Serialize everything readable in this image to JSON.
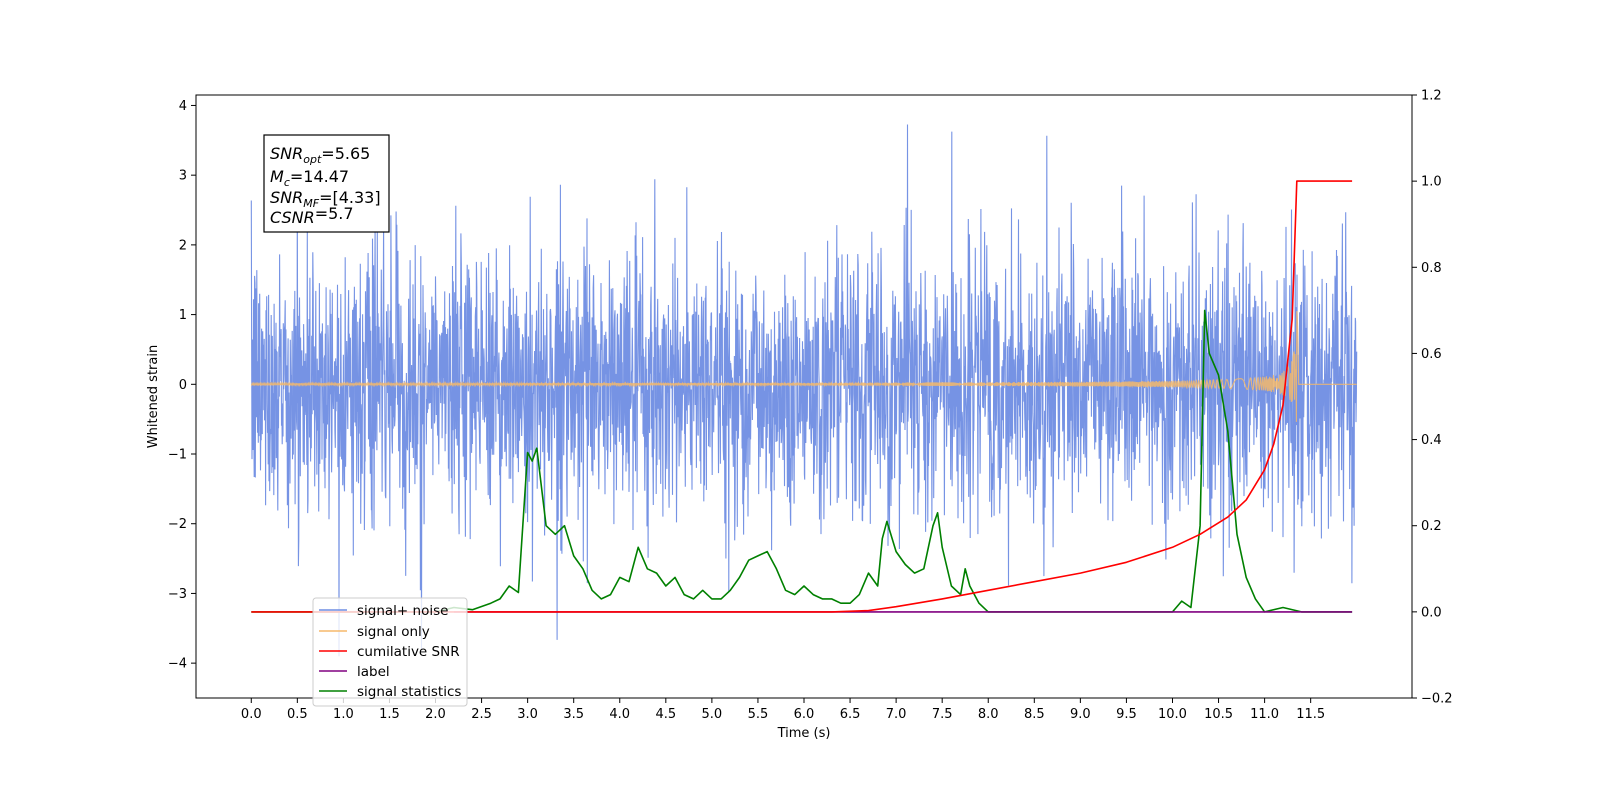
{
  "chart_data": {
    "type": "line",
    "xlabel": "Time (s)",
    "ylabel": "Whitened strain",
    "xlim": [
      -0.6,
      12.6
    ],
    "ylim_left": [
      -4.5,
      4.15
    ],
    "ylim_right": [
      -0.2,
      1.2
    ],
    "x_ticks": [
      0.0,
      0.5,
      1.0,
      1.5,
      2.0,
      2.5,
      3.0,
      3.5,
      4.0,
      4.5,
      5.0,
      5.5,
      6.0,
      6.5,
      7.0,
      7.5,
      8.0,
      8.5,
      9.0,
      9.5,
      10.0,
      10.5,
      11.0,
      11.5
    ],
    "x_tick_labels": [
      "0.0",
      "0.5",
      "1.0",
      "1.5",
      "2.0",
      "2.5",
      "3.0",
      "3.5",
      "4.0",
      "4.5",
      "5.0",
      "5.5",
      "6.0",
      "6.5",
      "7.0",
      "7.5",
      "8.0",
      "8.5",
      "9.0",
      "9.5",
      "10.0",
      "10.5",
      "11.0",
      "11.5"
    ],
    "y_left_ticks": [
      -4,
      -3,
      -2,
      -1,
      0,
      1,
      2,
      3,
      4
    ],
    "y_left_tick_labels": [
      "−4",
      "−3",
      "−2",
      "−1",
      "0",
      "1",
      "2",
      "3",
      "4"
    ],
    "y_right_ticks": [
      -0.2,
      0.0,
      0.2,
      0.4,
      0.6,
      0.8,
      1.0,
      1.2
    ],
    "y_right_tick_labels": [
      "−0.2",
      "0.0",
      "0.2",
      "0.4",
      "0.6",
      "0.8",
      "1.0",
      "1.2"
    ],
    "grid": false,
    "legend_position": "lower-left",
    "annotation": {
      "lines": [
        {
          "sym": "SNR",
          "sub": "opt",
          "rest": "=5.65"
        },
        {
          "sym": "M",
          "sub": "c",
          "rest": "=14.47"
        },
        {
          "sym": "SNR",
          "sub": "MF",
          "rest": "=[4.33]"
        },
        {
          "sym": "CSNR",
          "sub": "",
          "rest": "=5.7"
        }
      ]
    },
    "series": [
      {
        "name": "signal+ noise",
        "color": "#6f8de3",
        "axis": "left",
        "description_values": {
          "x_range": [
            0.0,
            12.0
          ],
          "typical_min": -2.5,
          "typical_max": 2.3
        }
      },
      {
        "name": "signal only",
        "color": "#f5b96b",
        "axis": "left",
        "chirp": {
          "start": 0.0,
          "merger": 11.35,
          "end": 12.0,
          "peak_pos": 1.05,
          "peak_neg": -0.88
        }
      },
      {
        "name": "cumilative SNR",
        "color": "#ff0000",
        "axis": "right",
        "x": [
          0.0,
          6.3,
          6.7,
          7.0,
          7.5,
          8.0,
          8.5,
          9.0,
          9.5,
          10.0,
          10.3,
          10.6,
          10.8,
          11.0,
          11.1,
          11.2,
          11.3,
          11.35,
          11.4,
          11.6,
          11.8,
          11.95
        ],
        "y": [
          0.0,
          0.0,
          0.003,
          0.012,
          0.03,
          0.05,
          0.07,
          0.09,
          0.115,
          0.15,
          0.18,
          0.22,
          0.26,
          0.33,
          0.39,
          0.48,
          0.68,
          1.0,
          1.0,
          1.0,
          1.0,
          1.0
        ]
      },
      {
        "name": "label",
        "color": "#800080",
        "axis": "right",
        "x": [
          2.2,
          11.95
        ],
        "y": [
          0.0,
          0.0
        ]
      },
      {
        "name": "signal statistics",
        "color": "#008000",
        "axis": "right",
        "x": [
          0.0,
          2.0,
          2.2,
          2.4,
          2.6,
          2.7,
          2.8,
          2.9,
          3.0,
          3.05,
          3.1,
          3.2,
          3.3,
          3.4,
          3.5,
          3.6,
          3.7,
          3.8,
          3.9,
          4.0,
          4.1,
          4.2,
          4.3,
          4.4,
          4.5,
          4.6,
          4.7,
          4.8,
          4.9,
          5.0,
          5.1,
          5.2,
          5.3,
          5.4,
          5.5,
          5.6,
          5.7,
          5.8,
          5.9,
          6.0,
          6.1,
          6.2,
          6.3,
          6.4,
          6.5,
          6.6,
          6.7,
          6.8,
          6.85,
          6.9,
          7.0,
          7.1,
          7.2,
          7.3,
          7.4,
          7.45,
          7.5,
          7.6,
          7.7,
          7.75,
          7.8,
          7.9,
          8.0,
          8.2,
          9.0,
          9.8,
          10.0,
          10.1,
          10.2,
          10.3,
          10.35,
          10.4,
          10.5,
          10.6,
          10.7,
          10.8,
          10.9,
          11.0,
          11.2,
          11.4,
          11.5,
          11.6,
          11.95
        ],
        "y": [
          0.0,
          0.0,
          0.01,
          0.005,
          0.02,
          0.03,
          0.06,
          0.045,
          0.37,
          0.35,
          0.38,
          0.2,
          0.18,
          0.2,
          0.13,
          0.1,
          0.05,
          0.03,
          0.04,
          0.08,
          0.07,
          0.15,
          0.1,
          0.09,
          0.06,
          0.08,
          0.04,
          0.03,
          0.05,
          0.03,
          0.03,
          0.05,
          0.08,
          0.12,
          0.13,
          0.14,
          0.1,
          0.05,
          0.04,
          0.06,
          0.04,
          0.03,
          0.03,
          0.02,
          0.02,
          0.04,
          0.09,
          0.06,
          0.17,
          0.21,
          0.14,
          0.11,
          0.09,
          0.1,
          0.2,
          0.23,
          0.15,
          0.06,
          0.04,
          0.1,
          0.06,
          0.02,
          0.0,
          0.0,
          0.0,
          0.0,
          0.0,
          0.025,
          0.01,
          0.2,
          0.7,
          0.6,
          0.55,
          0.42,
          0.18,
          0.08,
          0.03,
          0.0,
          0.01,
          0.0,
          0.0,
          0.0,
          0.0
        ]
      }
    ]
  }
}
